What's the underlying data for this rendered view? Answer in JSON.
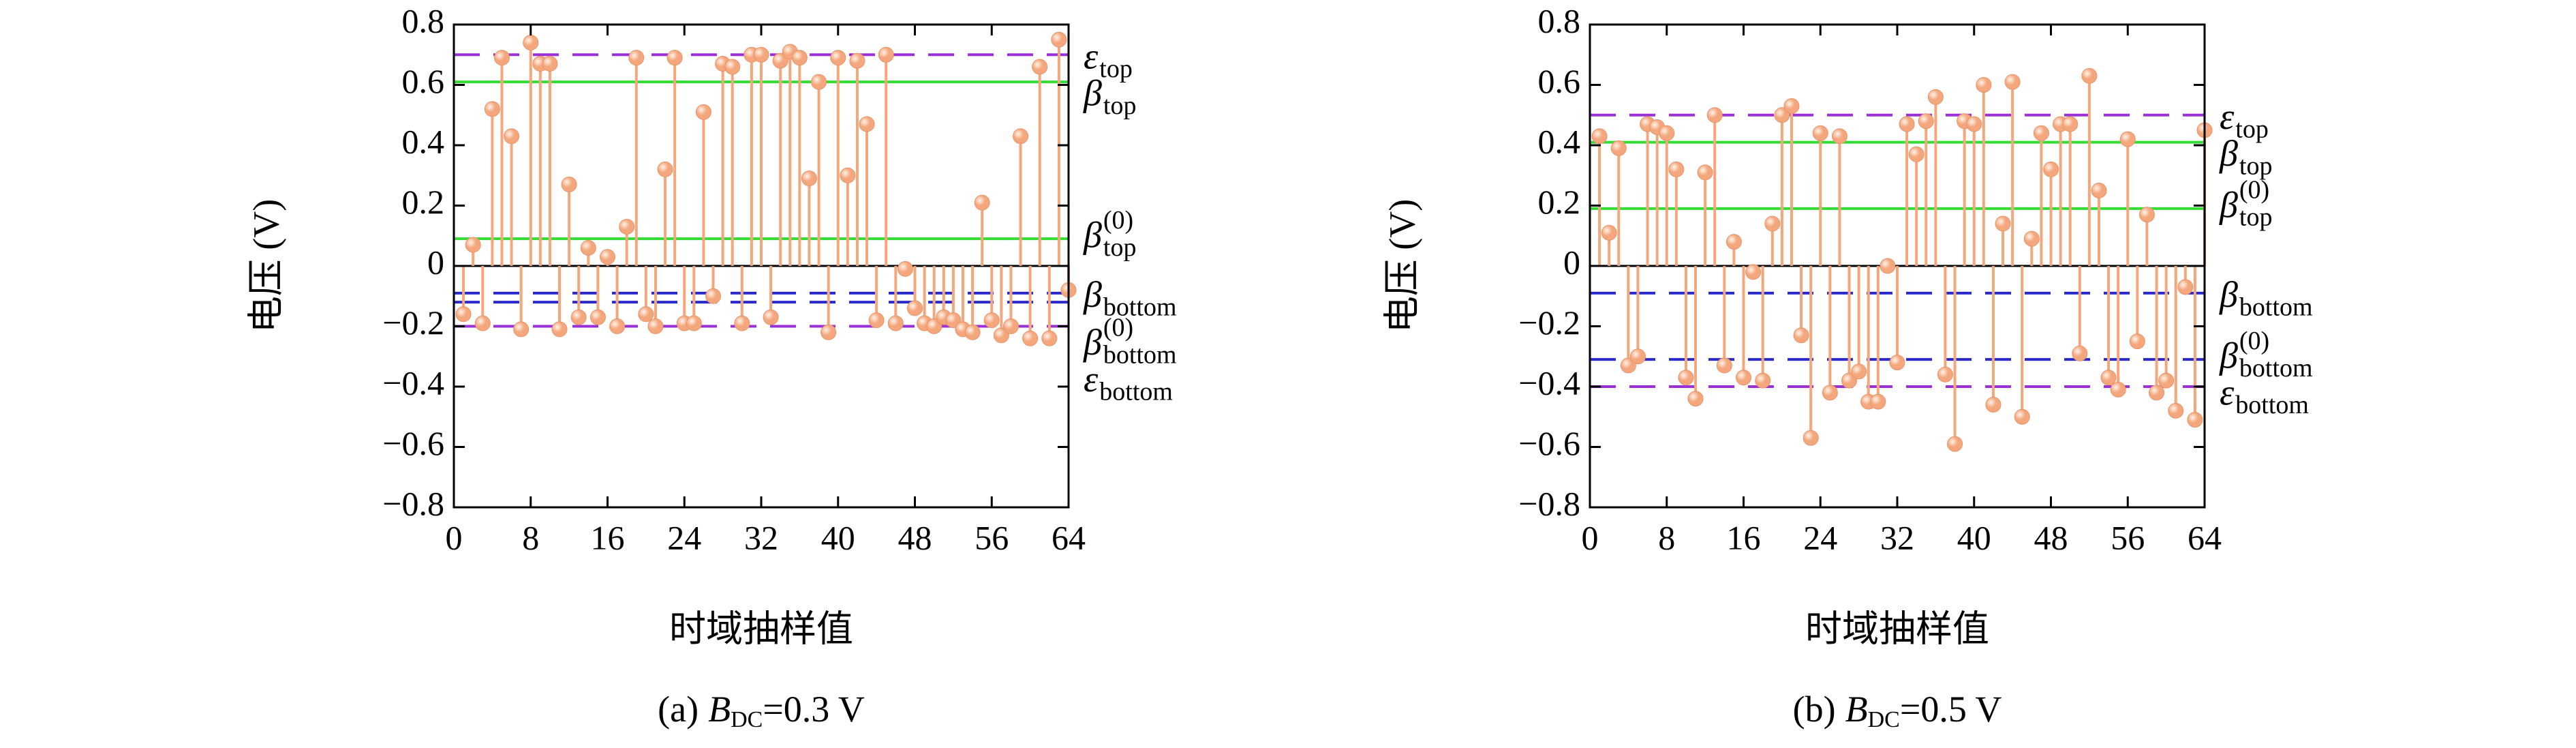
{
  "chart_data": [
    {
      "type": "stem",
      "caption": {
        "label": "(a)",
        "symbol": "B",
        "sub": "DC",
        "rest": "=0.3 V"
      },
      "xlabel": "时域抽样值",
      "ylabel": "电压 (V)",
      "color": "#f4a77c",
      "x": [
        1,
        2,
        3,
        4,
        5,
        6,
        7,
        8,
        9,
        10,
        11,
        12,
        13,
        14,
        15,
        16,
        17,
        18,
        19,
        20,
        21,
        22,
        23,
        24,
        25,
        26,
        27,
        28,
        29,
        30,
        31,
        32,
        33,
        34,
        35,
        36,
        37,
        38,
        39,
        40,
        41,
        42,
        43,
        44,
        45,
        46,
        47,
        48,
        49,
        50,
        51,
        52,
        53,
        54,
        55,
        56,
        57,
        58,
        59,
        60,
        61,
        62,
        63,
        64
      ],
      "values": [
        -0.16,
        0.07,
        -0.19,
        0.52,
        0.69,
        0.43,
        -0.21,
        0.74,
        0.67,
        0.67,
        -0.21,
        0.27,
        -0.17,
        0.06,
        -0.17,
        0.03,
        -0.2,
        0.13,
        0.69,
        -0.16,
        -0.2,
        0.32,
        0.69,
        -0.19,
        -0.19,
        0.51,
        -0.1,
        0.67,
        0.66,
        -0.19,
        0.7,
        0.7,
        -0.17,
        0.68,
        0.71,
        0.69,
        0.29,
        0.61,
        -0.22,
        0.69,
        0.3,
        0.68,
        0.47,
        -0.18,
        0.7,
        -0.19,
        -0.01,
        -0.14,
        -0.19,
        -0.2,
        -0.17,
        -0.18,
        -0.21,
        -0.22,
        0.21,
        -0.18,
        -0.23,
        -0.2,
        0.43,
        -0.24,
        0.66,
        -0.24,
        0.75,
        -0.08
      ],
      "xlim": [
        0,
        64
      ],
      "ylim": [
        -0.8,
        0.8
      ],
      "xticks": [
        0,
        8,
        16,
        24,
        32,
        40,
        48,
        56,
        64
      ],
      "yticks": [
        {
          "value": -0.8,
          "label": "−0.8"
        },
        {
          "value": -0.6,
          "label": "−0.6"
        },
        {
          "value": -0.4,
          "label": "−0.4"
        },
        {
          "value": -0.2,
          "label": "−0.2"
        },
        0,
        0.2,
        0.4,
        0.6,
        0.8
      ],
      "hlines": [
        {
          "symbol": "ε",
          "sub": "top",
          "value": 0.7,
          "color": "#9b30d9",
          "dash": true
        },
        {
          "symbol": "β",
          "sub": "top",
          "value": 0.61,
          "color": "#33dd33",
          "dash": false
        },
        {
          "symbol": "β",
          "sub": "top",
          "sup": "(0)",
          "value": 0.09,
          "color": "#33dd33",
          "dash": false
        },
        {
          "symbol": "β",
          "sub": "bottom",
          "value": -0.09,
          "color": "#2a2acc",
          "dash": true
        },
        {
          "symbol": "β",
          "sub": "bottom",
          "sup": "(0)",
          "value": -0.12,
          "color": "#2a2acc",
          "dash": true
        },
        {
          "symbol": "ε",
          "sub": "bottom",
          "value": -0.2,
          "color": "#9b30d9",
          "dash": true
        }
      ]
    },
    {
      "type": "stem",
      "caption": {
        "label": "(b)",
        "symbol": "B",
        "sub": "DC",
        "rest": "=0.5 V"
      },
      "xlabel": "时域抽样值",
      "ylabel": "电压 (V)",
      "color": "#f4a77c",
      "x": [
        1,
        2,
        3,
        4,
        5,
        6,
        7,
        8,
        9,
        10,
        11,
        12,
        13,
        14,
        15,
        16,
        17,
        18,
        19,
        20,
        21,
        22,
        23,
        24,
        25,
        26,
        27,
        28,
        29,
        30,
        31,
        32,
        33,
        34,
        35,
        36,
        37,
        38,
        39,
        40,
        41,
        42,
        43,
        44,
        45,
        46,
        47,
        48,
        49,
        50,
        51,
        52,
        53,
        54,
        55,
        56,
        57,
        58,
        59,
        60,
        61,
        62,
        63,
        64
      ],
      "values": [
        0.43,
        0.11,
        0.39,
        -0.33,
        -0.3,
        0.47,
        0.46,
        0.44,
        0.32,
        -0.37,
        -0.44,
        0.31,
        0.5,
        -0.33,
        0.08,
        -0.37,
        -0.02,
        -0.38,
        0.14,
        0.5,
        0.53,
        -0.23,
        -0.57,
        0.44,
        -0.42,
        0.43,
        -0.38,
        -0.35,
        -0.45,
        -0.45,
        0.0,
        -0.32,
        0.47,
        0.37,
        0.48,
        0.56,
        -0.36,
        -0.59,
        0.48,
        0.47,
        0.6,
        -0.46,
        0.14,
        0.61,
        -0.5,
        0.09,
        0.44,
        0.32,
        0.47,
        0.47,
        -0.29,
        0.63,
        0.25,
        -0.37,
        -0.41,
        0.42,
        -0.25,
        0.17,
        -0.42,
        -0.38,
        -0.48,
        -0.07,
        -0.51,
        0.45
      ],
      "xlim": [
        0,
        64
      ],
      "ylim": [
        -0.8,
        0.8
      ],
      "xticks": [
        0,
        8,
        16,
        24,
        32,
        40,
        48,
        56,
        64
      ],
      "yticks": [
        {
          "value": -0.8,
          "label": "−0.8"
        },
        {
          "value": -0.6,
          "label": "−0.6"
        },
        {
          "value": -0.4,
          "label": "−0.4"
        },
        {
          "value": -0.2,
          "label": "−0.2"
        },
        0,
        0.2,
        0.4,
        0.6,
        0.8
      ],
      "hlines": [
        {
          "symbol": "ε",
          "sub": "top",
          "value": 0.5,
          "color": "#9b30d9",
          "dash": true
        },
        {
          "symbol": "β",
          "sub": "top",
          "value": 0.41,
          "color": "#33dd33",
          "dash": false
        },
        {
          "symbol": "β",
          "sub": "top",
          "sup": "(0)",
          "value": 0.19,
          "color": "#33dd33",
          "dash": false
        },
        {
          "symbol": "β",
          "sub": "bottom",
          "value": -0.09,
          "color": "#2a2acc",
          "dash": true
        },
        {
          "symbol": "β",
          "sub": "bottom",
          "sup": "(0)",
          "value": -0.31,
          "color": "#2a2acc",
          "dash": true
        },
        {
          "symbol": "ε",
          "sub": "bottom",
          "value": -0.4,
          "color": "#9b30d9",
          "dash": true
        }
      ]
    }
  ]
}
